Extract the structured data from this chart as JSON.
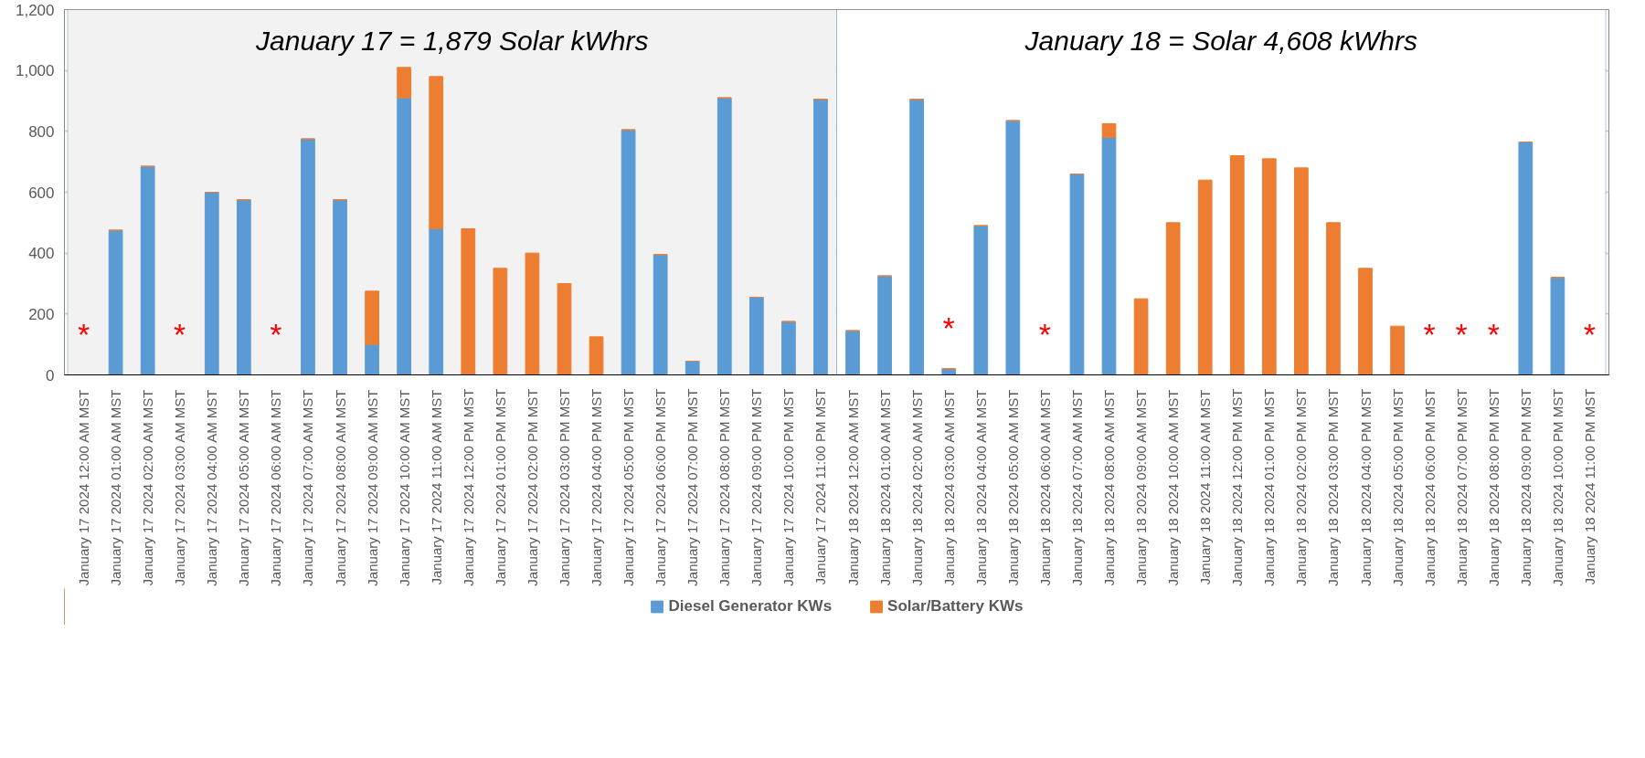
{
  "chart_data": {
    "type": "bar",
    "stacked": true,
    "categories": [
      "January 17  2024 12:00 AM MST",
      "January 17  2024 01:00 AM MST",
      "January 17  2024 02:00 AM MST",
      "January 17  2024 03:00 AM MST",
      "January 17  2024 04:00 AM MST",
      "January 17  2024 05:00 AM MST",
      "January 17  2024 06:00 AM MST",
      "January 17  2024 07:00 AM MST",
      "January 17  2024 08:00 AM MST",
      "January 17  2024 09:00 AM MST",
      "January 17  2024 10:00 AM MST",
      "January 17  2024 11:00 AM MST",
      "January 17  2024 12:00 PM MST",
      "January 17  2024 01:00 PM MST",
      "January 17  2024 02:00 PM MST",
      "January 17  2024 03:00 PM MST",
      "January 17  2024 04:00 PM MST",
      "January 17  2024 05:00 PM MST",
      "January 17  2024 06:00 PM MST",
      "January 17  2024 07:00 PM MST",
      "January 17  2024 08:00 PM MST",
      "January 17  2024 09:00 PM MST",
      "January 17  2024 10:00 PM MST",
      "January 17  2024 11:00 PM MST",
      "January 18  2024 12:00 AM MST",
      "January 18  2024 01:00 AM MST",
      "January 18  2024 02:00 AM MST",
      "January 18  2024 03:00 AM MST",
      "January 18  2024 04:00 AM MST",
      "January 18  2024 05:00 AM MST",
      "January 18  2024 06:00 AM MST",
      "January 18  2024 07:00 AM MST",
      "January 18  2024 08:00 AM MST",
      "January 18  2024 09:00 AM MST",
      "January 18  2024 10:00 AM MST",
      "January 18  2024 11:00 AM MST",
      "January 18  2024 12:00 PM MST",
      "January 18  2024 01:00 PM MST",
      "January 18  2024 02:00 PM MST",
      "January 18  2024 03:00 PM MST",
      "January 18  2024 04:00 PM MST",
      "January 18  2024 05:00 PM MST",
      "January 18  2024 06:00 PM MST",
      "January 18  2024 07:00 PM MST",
      "January 18  2024 08:00 PM MST",
      "January 18  2024 09:00 PM MST",
      "January 18  2024 10:00 PM MST",
      "January 18  2024 11:00 PM MST"
    ],
    "series": [
      {
        "name": "Diesel Generator KWs",
        "color": "#5b9bd5",
        "values": [
          0,
          475,
          685,
          0,
          600,
          575,
          0,
          775,
          575,
          100,
          910,
          480,
          0,
          0,
          0,
          0,
          0,
          805,
          395,
          45,
          910,
          255,
          175,
          905,
          145,
          325,
          905,
          20,
          490,
          835,
          0,
          660,
          780,
          0,
          0,
          0,
          0,
          0,
          0,
          0,
          0,
          0,
          0,
          0,
          0,
          765,
          320,
          0
        ]
      },
      {
        "name": "Solar/Battery KWs",
        "color": "#ed7d31",
        "values": [
          0,
          0,
          0,
          0,
          0,
          0,
          0,
          0,
          0,
          175,
          100,
          500,
          480,
          350,
          400,
          300,
          125,
          0,
          0,
          0,
          0,
          0,
          0,
          0,
          0,
          0,
          0,
          0,
          0,
          0,
          0,
          0,
          45,
          250,
          500,
          640,
          720,
          710,
          680,
          500,
          350,
          160,
          0,
          0,
          0,
          0,
          0,
          0
        ]
      }
    ],
    "ylim": [
      0,
      1200
    ],
    "yticks": [
      0,
      200,
      400,
      600,
      800,
      {
        "value": 1000,
        "label": "1,000"
      },
      {
        "value": 1200,
        "label": "1,200"
      }
    ],
    "grid": "y",
    "legend": "bottom",
    "bands": [
      {
        "axis": "x",
        "from": "January 17  2024 12:00 AM MST",
        "to": "January 17  2024 11:00 PM MST",
        "label": "January 17 = 1,879 Solar kWhrs",
        "color": "#f2f2f2"
      },
      {
        "axis": "x",
        "from": "January 18  2024 12:00 AM MST",
        "to": "January 18  2024 11:00 PM MST",
        "label": "January 18 = Solar 4,608 kWhrs",
        "color": "#ffffff"
      }
    ],
    "annotations": [
      {
        "text": "*",
        "x": "January 17  2024 12:00 AM MST",
        "y": 0
      },
      {
        "text": "*",
        "x": "January 17  2024 03:00 AM MST",
        "y": 0
      },
      {
        "text": "*",
        "x": "January 17  2024 06:00 AM MST",
        "y": 0
      },
      {
        "text": "*",
        "x": "January 18  2024 03:00 AM MST",
        "y": 20
      },
      {
        "text": "*",
        "x": "January 18  2024 06:00 AM MST",
        "y": 0
      },
      {
        "text": "*",
        "x": "January 18  2024 06:00 PM MST",
        "y": 0
      },
      {
        "text": "*",
        "x": "January 18  2024 07:00 PM MST",
        "y": 0
      },
      {
        "text": "*",
        "x": "January 18  2024 08:00 PM MST",
        "y": 0
      },
      {
        "text": "*",
        "x": "January 18  2024 11:00 PM MST",
        "y": 0
      }
    ]
  }
}
